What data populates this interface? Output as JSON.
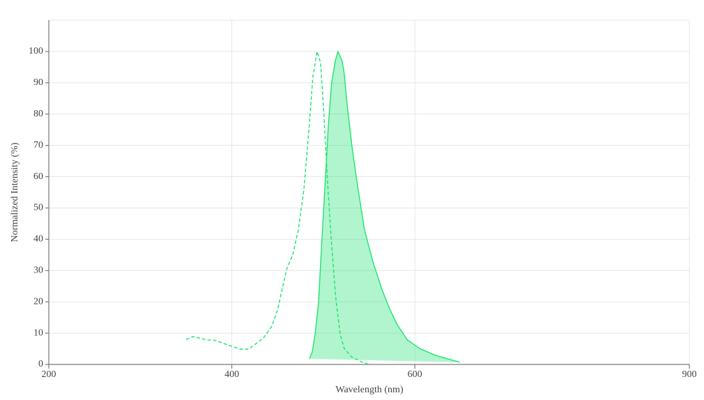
{
  "chart_data": {
    "type": "line",
    "x_label": "Wavelength (nm)",
    "y_label": "Normalized Intensity (%)",
    "xlim": [
      200,
      900
    ],
    "xticks": [
      200,
      400,
      600,
      900
    ],
    "ylim": [
      0,
      110
    ],
    "yticks": [
      0,
      10,
      20,
      30,
      40,
      50,
      60,
      70,
      80,
      90,
      100
    ],
    "grid": true,
    "series": [
      {
        "color": "#1ee36f",
        "line_style": "dashed",
        "filled": false,
        "x": [
          350,
          357.6,
          373,
          380.5,
          398,
          409,
          418.6,
          434.6,
          443.7,
          450,
          455,
          460.5,
          466.6,
          472.7,
          478.8,
          484,
          488.6,
          493.2,
          497,
          500,
          504.6,
          509,
          513.8,
          518.4,
          523,
          531,
          542.7,
          550
        ],
        "values": [
          8,
          8.9,
          7.8,
          7.8,
          6,
          4.9,
          4.9,
          8.5,
          12.2,
          17.4,
          24,
          31,
          35,
          43,
          56,
          74,
          92,
          100,
          96.4,
          83,
          58.6,
          38.5,
          20.7,
          9.6,
          5,
          2.4,
          0.7,
          0
        ]
      },
      {
        "color": "#1ee36f",
        "line_style": "solid",
        "filled": true,
        "x": [
          484.8,
          487.9,
          491,
          494.7,
          497.8,
          501.6,
          505.4,
          509,
          513,
          516,
          520.6,
          522.9,
          526,
          531.3,
          536.6,
          545,
          554,
          564,
          573,
          580.8,
          592,
          606,
          622.7,
          649
        ],
        "values": [
          1.8,
          4,
          9.6,
          19.6,
          36.3,
          56,
          76,
          89.8,
          96.9,
          100,
          96.9,
          92.9,
          83,
          69.7,
          58.6,
          43,
          33,
          24,
          17.4,
          12.7,
          7.8,
          5,
          2.9,
          0.7
        ]
      }
    ]
  }
}
